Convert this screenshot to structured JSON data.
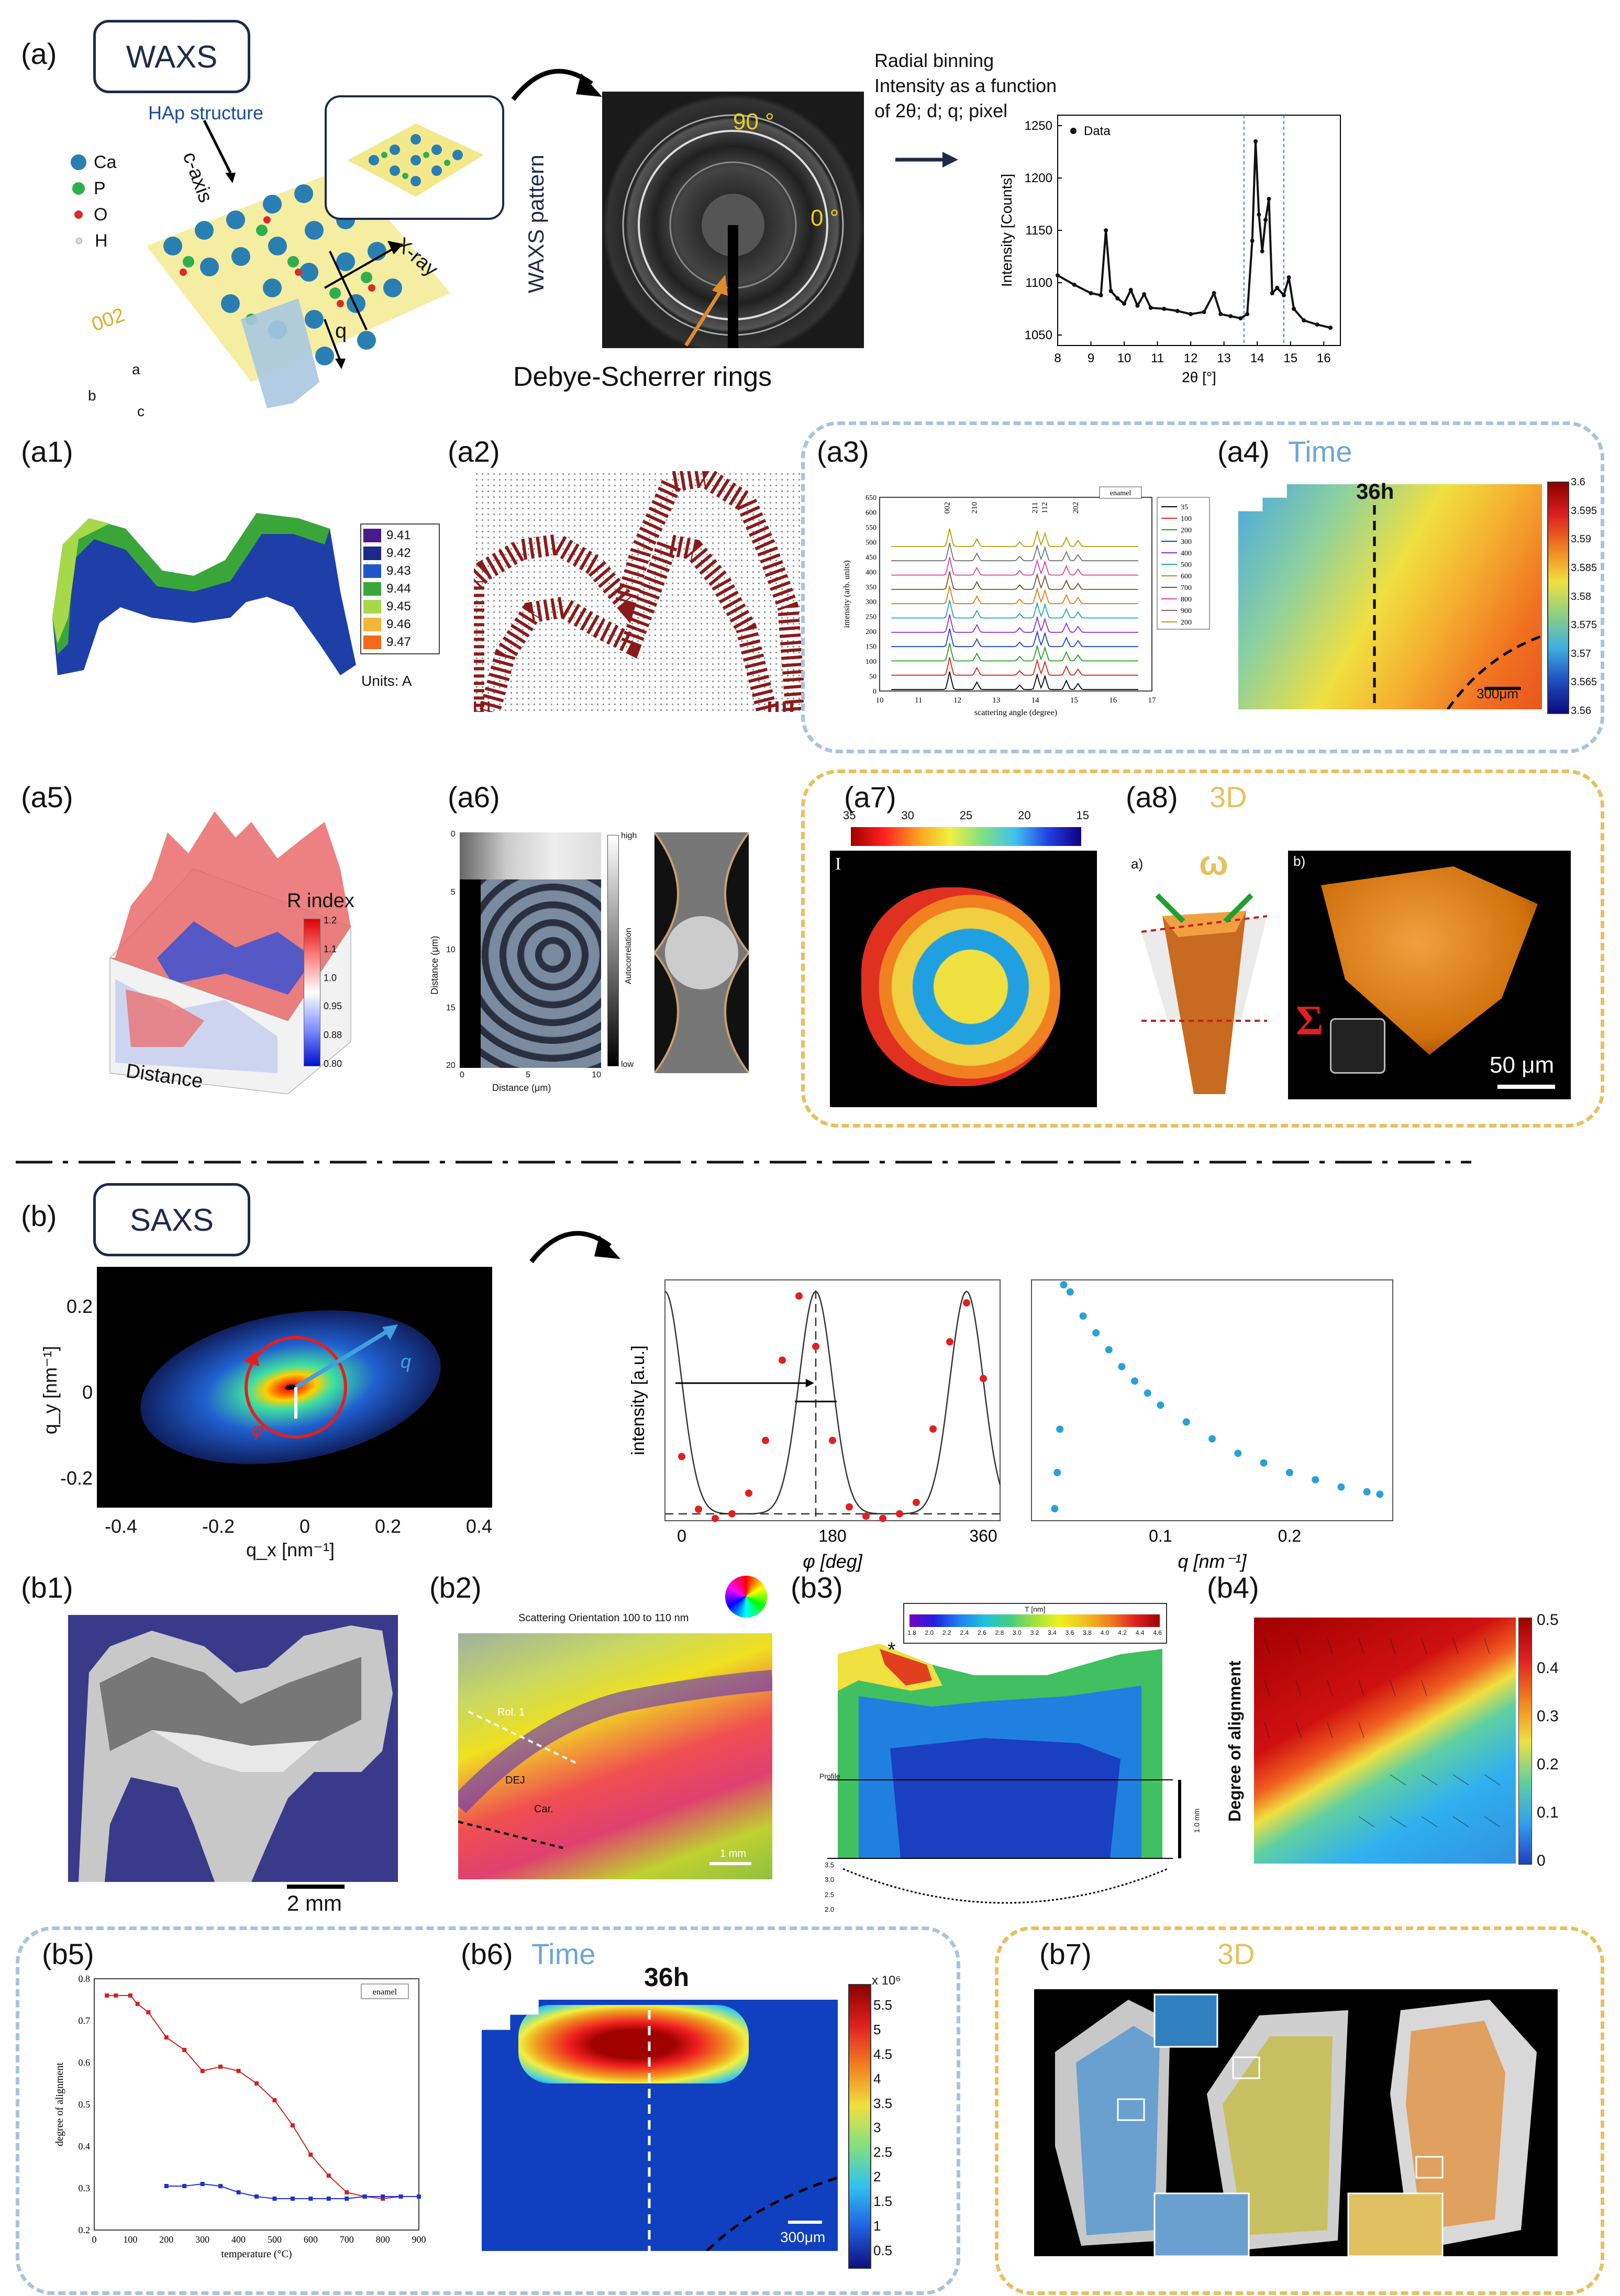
{
  "panel_a": {
    "label": "(a)",
    "title": "WAXS",
    "hap_title": "HAp structure",
    "atom_legend": [
      "Ca",
      "P",
      "O",
      "H"
    ],
    "c_axis": "c-axis",
    "x_ray": "X-ray",
    "plane": "002",
    "q": "q",
    "axes_abc": [
      "a",
      "b",
      "c"
    ],
    "pattern_label": "WAXS pattern",
    "angle_90": "90 °",
    "angle_0": "0 °",
    "rings_label": "Debye-Scherrer rings",
    "binning_text": [
      "Radial binning",
      "Intensity as a function",
      "of 2θ; d; q; pixel"
    ]
  },
  "waxs_chart": {
    "chart_data": {
      "type": "line",
      "legend": "Data",
      "xlabel": "2θ [°]",
      "ylabel": "Intensity [Counts]",
      "xlim": [
        8,
        16.5
      ],
      "ylim": [
        1040,
        1260
      ],
      "xticks": [
        "8",
        "9",
        "10",
        "11",
        "12",
        "13",
        "14",
        "15",
        "16"
      ],
      "yticks": [
        "1050",
        "1100",
        "1150",
        "1200",
        "1250"
      ],
      "x": [
        8.0,
        8.5,
        9.0,
        9.3,
        9.45,
        9.6,
        9.8,
        10.0,
        10.2,
        10.4,
        10.6,
        10.8,
        11.2,
        11.6,
        12.0,
        12.4,
        12.7,
        12.9,
        13.2,
        13.5,
        13.7,
        13.85,
        13.95,
        14.05,
        14.15,
        14.25,
        14.35,
        14.45,
        14.6,
        14.8,
        14.95,
        15.1,
        15.4,
        15.8,
        16.2
      ],
      "y": [
        1107,
        1098,
        1090,
        1088,
        1150,
        1092,
        1085,
        1080,
        1093,
        1078,
        1089,
        1076,
        1075,
        1073,
        1070,
        1072,
        1090,
        1070,
        1068,
        1066,
        1070,
        1140,
        1235,
        1165,
        1130,
        1160,
        1180,
        1090,
        1095,
        1088,
        1105,
        1075,
        1064,
        1060,
        1057
      ],
      "markers": [
        13.6,
        14.8
      ]
    }
  },
  "a_sub": {
    "a1": "(a1)",
    "a2": "(a2)",
    "a3": "(a3)",
    "a4": "(a4)",
    "a5": "(a5)",
    "a6": "(a6)",
    "a7": "(a7)",
    "a8": "(a8)",
    "time": "Time",
    "three_d": "3D",
    "a1_legend": [
      "9.41",
      "9.42",
      "9.43",
      "9.44",
      "9.45",
      "9.46",
      "9.47"
    ],
    "a1_legend_colors": [
      "#4b1a8a",
      "#1b2a8a",
      "#1f57c8",
      "#3aa63a",
      "#a6d84a",
      "#f4b63a",
      "#f06a1a"
    ],
    "a1_units": "Units: A",
    "a3_peaks": [
      "002",
      "210",
      "211",
      "112",
      "202"
    ],
    "a3_legend_title": "enamel",
    "a3_legend": [
      "35",
      "100",
      "200",
      "300",
      "400",
      "500",
      "600",
      "700",
      "800",
      "900",
      "200"
    ],
    "a3_colors": [
      "#000000",
      "#e0201c",
      "#23a023",
      "#1a3bd0",
      "#8a2be2",
      "#1aa6b6",
      "#e07a10",
      "#705030",
      "#e040a0",
      "#707070",
      "#b0a000"
    ],
    "a3_xlabel": "scattering angle (degree)",
    "a3_ylabel": "intensity (arb. units)",
    "a3_xticks": [
      "10",
      "11",
      "12",
      "13",
      "14",
      "15",
      "16",
      "17"
    ],
    "a3_yticks": [
      "0",
      "50",
      "100",
      "150",
      "200",
      "250",
      "300",
      "350",
      "400",
      "450",
      "500",
      "550",
      "600",
      "650"
    ],
    "a4_time": "36h",
    "a4_scale": "300μm",
    "a4_cbar": [
      "3.6",
      "3.595",
      "3.59",
      "3.585",
      "3.58",
      "3.575",
      "3.57",
      "3.565",
      "3.56"
    ],
    "a5_cbar_title": "R index",
    "a5_cbar": [
      "1.2",
      "1.1",
      "1.0",
      "0.95",
      "0.88",
      "0.80"
    ],
    "a5_axis": "Distance",
    "a6_xlabel": "Distance (μm)",
    "a6_ylabel": "Distance (μm)",
    "a6_xticks": [
      "0",
      "5",
      "10"
    ],
    "a6_yticks": [
      "0",
      "5",
      "10",
      "15",
      "20"
    ],
    "a6_cbar_title": "Autocorrelation",
    "a6_high": "high",
    "a6_low": "low",
    "a7_cbar": [
      "35",
      "30",
      "25",
      "20",
      "15"
    ],
    "a7_inset": "I",
    "a8_a": "a)",
    "a8_b": "b)",
    "a8_omega": "ω",
    "a8_sigma": "Σ",
    "a8_scale": "50 μm"
  },
  "panel_b": {
    "label": "(b)",
    "title": "SAXS",
    "saxs_xlabel": "q_x [nm⁻¹]",
    "saxs_ylabel": "q_y [nm⁻¹]",
    "saxs_xticks": [
      "-0.4",
      "-0.2",
      "0",
      "0.2",
      "0.4"
    ],
    "saxs_yticks": [
      "0.2",
      "0",
      "-0.2"
    ],
    "q": "q",
    "phi": "φ"
  },
  "phi_chart": {
    "chart_data": {
      "type": "scatter",
      "xlabel": "φ [deg]",
      "ylabel": "intensity [a.u.]",
      "xticks": [
        "0",
        "180",
        "360"
      ],
      "xlim": [
        -20,
        380
      ],
      "ylim": [
        0,
        1.05
      ],
      "x": [
        0,
        20,
        40,
        60,
        80,
        100,
        120,
        140,
        160,
        180,
        200,
        220,
        240,
        260,
        280,
        300,
        320,
        340,
        360
      ],
      "y": [
        0.28,
        0.05,
        0.01,
        0.03,
        0.12,
        0.35,
        0.7,
        0.98,
        0.76,
        0.35,
        0.06,
        0.02,
        0.01,
        0.03,
        0.08,
        0.4,
        0.78,
        0.95,
        0.62
      ]
    }
  },
  "q_chart": {
    "chart_data": {
      "type": "scatter",
      "xlabel": "q [nm⁻¹]",
      "xticks": [
        "0.1",
        "0.2"
      ],
      "xlim": [
        0,
        0.28
      ],
      "ylim": [
        0,
        1
      ],
      "x": [
        0.018,
        0.02,
        0.022,
        0.025,
        0.03,
        0.04,
        0.05,
        0.06,
        0.07,
        0.08,
        0.09,
        0.1,
        0.12,
        0.14,
        0.16,
        0.18,
        0.2,
        0.22,
        0.24,
        0.26,
        0.27
      ],
      "y": [
        0.05,
        0.2,
        0.38,
        0.98,
        0.95,
        0.85,
        0.78,
        0.71,
        0.64,
        0.58,
        0.53,
        0.48,
        0.41,
        0.34,
        0.28,
        0.24,
        0.2,
        0.17,
        0.14,
        0.12,
        0.11
      ]
    }
  },
  "b_sub": {
    "b1": "(b1)",
    "b2": "(b2)",
    "b3": "(b3)",
    "b4": "(b4)",
    "b5": "(b5)",
    "b6": "(b6)",
    "b7": "(b7)",
    "time": "Time",
    "three_d": "3D",
    "b1_scale": "2 mm",
    "b2_title": "Scattering Orientation 100 to 110 nm",
    "b2_labels": [
      "Rol. 1",
      "DEJ",
      "Car."
    ],
    "b2_scale": "1 mm",
    "b3_cbar_title": "T [nm]",
    "b3_cbar": [
      "1.8",
      "2.0",
      "2.2",
      "2.4",
      "2.6",
      "2.8",
      "3.0",
      "3.2",
      "3.4",
      "3.6",
      "3.8",
      "4.0",
      "4.2",
      "4.4",
      "4.6"
    ],
    "b3_star": "*",
    "b3_profile": "Profile",
    "b3_scale": "1.0 mm",
    "b3_profile_ticks": [
      "3.5",
      "3.0",
      "2.5",
      "2.0"
    ],
    "b4_ylabel": "Degree of alignment",
    "b4_cbar": [
      "0.5",
      "0.4",
      "0.3",
      "0.2",
      "0.1",
      "0"
    ],
    "b5_legend": "enamel",
    "b5_xlabel": "temperature (°C)",
    "b5_ylabel": "degree of alignment",
    "b6_time": "36h",
    "b6_scale": "300μm",
    "b6_cbar_exp": "x 10⁶",
    "b6_cbar": [
      "5.5",
      "5",
      "4.5",
      "4",
      "3.5",
      "3",
      "2.5",
      "2",
      "1.5",
      "1",
      "0.5"
    ]
  },
  "b5_chart": {
    "chart_data": {
      "type": "line",
      "xlabel": "temperature (°C)",
      "ylabel": "degree of alignment",
      "xlim": [
        0,
        900
      ],
      "ylim": [
        0.2,
        0.8
      ],
      "xticks": [
        "0",
        "100",
        "200",
        "300",
        "400",
        "500",
        "600",
        "700",
        "800",
        "900"
      ],
      "yticks": [
        "0.2",
        "0.3",
        "0.4",
        "0.5",
        "0.6",
        "0.7",
        "0.8"
      ],
      "series": [
        {
          "color": "#d62020",
          "x": [
            35,
            60,
            100,
            120,
            150,
            200,
            250,
            300,
            350,
            400,
            450,
            500,
            550,
            600,
            650,
            700,
            750,
            800,
            850,
            900
          ],
          "y": [
            0.76,
            0.76,
            0.76,
            0.74,
            0.72,
            0.66,
            0.63,
            0.58,
            0.59,
            0.58,
            0.55,
            0.51,
            0.45,
            0.38,
            0.33,
            0.29,
            0.28,
            0.275,
            0.28,
            0.28
          ]
        },
        {
          "color": "#2030d0",
          "x": [
            200,
            250,
            300,
            350,
            400,
            450,
            500,
            550,
            600,
            650,
            700,
            750,
            800,
            850,
            900
          ],
          "y": [
            0.305,
            0.305,
            0.31,
            0.305,
            0.29,
            0.28,
            0.275,
            0.275,
            0.275,
            0.275,
            0.275,
            0.28,
            0.28,
            0.28,
            0.28
          ]
        }
      ]
    }
  }
}
